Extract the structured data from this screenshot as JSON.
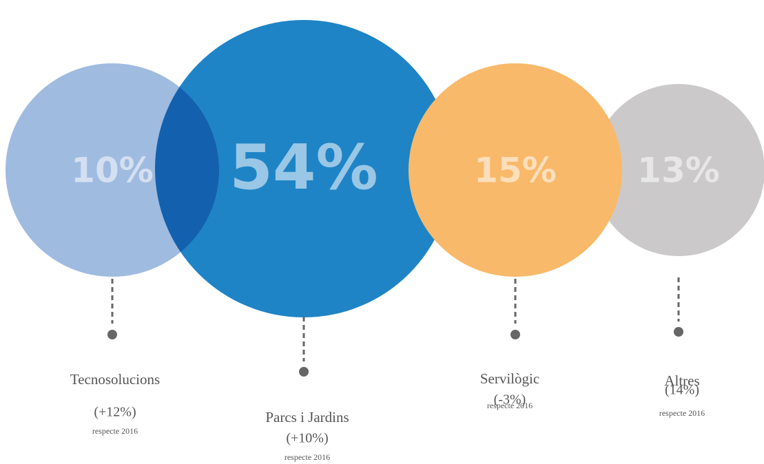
{
  "chart_data": {
    "type": "bubble",
    "categories": [
      "Tecnosolucions",
      "Parcs i Jardins",
      "Servilògic",
      "Altres"
    ],
    "values": [
      10,
      54,
      15,
      13
    ],
    "value_labels": [
      "10%",
      "54%",
      "15%",
      "13%"
    ],
    "changes": [
      "(+12%)",
      "(+10%)",
      "(-3%)",
      "(14%)"
    ],
    "notes": [
      "respecte 2016",
      "respecte 2016",
      "respecte 2016",
      "respecte 2016"
    ],
    "colors": [
      "#a0bbe0",
      "#1e84c6",
      "#f9b96a",
      "#cbc9ca"
    ]
  }
}
